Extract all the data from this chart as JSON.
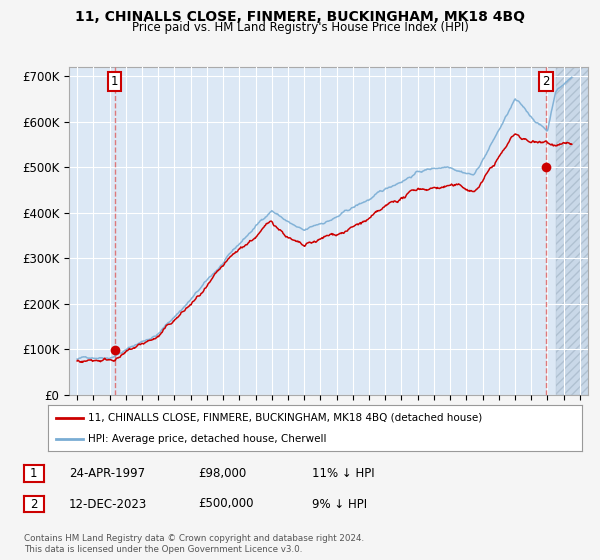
{
  "title": "11, CHINALLS CLOSE, FINMERE, BUCKINGHAM, MK18 4BQ",
  "subtitle": "Price paid vs. HM Land Registry's House Price Index (HPI)",
  "hpi_color": "#7aadd4",
  "price_color": "#cc0000",
  "background_color": "#f5f5f5",
  "plot_bg_color": "#dce8f5",
  "grid_color": "#ffffff",
  "hatch_bg": "#c8d8e8",
  "ylim": [
    0,
    720000
  ],
  "yticks": [
    0,
    100000,
    200000,
    300000,
    400000,
    500000,
    600000,
    700000
  ],
  "ytick_labels": [
    "£0",
    "£100K",
    "£200K",
    "£300K",
    "£400K",
    "£500K",
    "£600K",
    "£700K"
  ],
  "sale1_year": 1997.31,
  "sale1_price": 98000,
  "sale1_label": "1",
  "sale2_year": 2023.92,
  "sale2_price": 500000,
  "sale2_label": "2",
  "hatch_start": 2024.5,
  "legend_line1": "11, CHINALLS CLOSE, FINMERE, BUCKINGHAM, MK18 4BQ (detached house)",
  "legend_line2": "HPI: Average price, detached house, Cherwell",
  "table_row1": [
    "1",
    "24-APR-1997",
    "£98,000",
    "11% ↓ HPI"
  ],
  "table_row2": [
    "2",
    "12-DEC-2023",
    "£500,000",
    "9% ↓ HPI"
  ],
  "footnote": "Contains HM Land Registry data © Crown copyright and database right 2024.\nThis data is licensed under the Open Government Licence v3.0.",
  "xmin": 1994.5,
  "xmax": 2026.5,
  "xtick_start": 1995,
  "xtick_end": 2027
}
